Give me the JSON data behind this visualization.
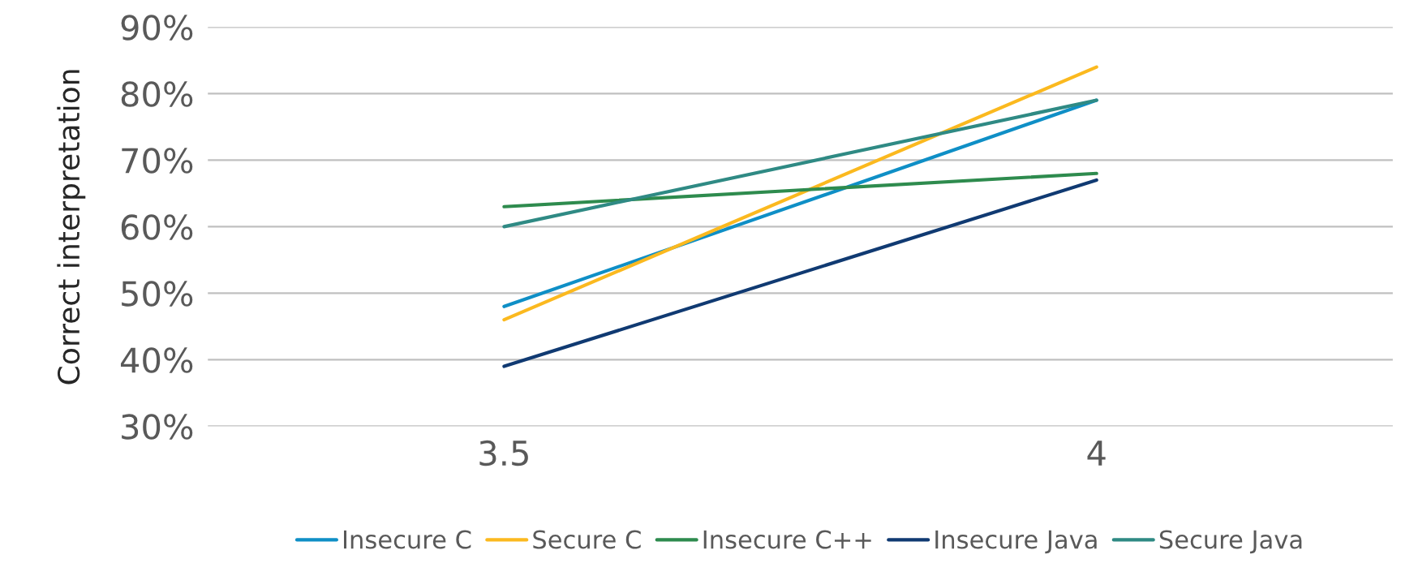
{
  "chart_data": {
    "type": "line",
    "ylabel": "Correct interpretation",
    "categories": [
      "3.5",
      "4"
    ],
    "series": [
      {
        "name": "Insecure C",
        "color": "#0f8fc6",
        "values": [
          48,
          79
        ]
      },
      {
        "name": "Secure C",
        "color": "#fbb91f",
        "values": [
          46,
          84
        ]
      },
      {
        "name": "Insecure C++",
        "color": "#2e8b4e",
        "values": [
          63,
          68
        ]
      },
      {
        "name": "Insecure Java",
        "color": "#103a72",
        "values": [
          39,
          67
        ]
      },
      {
        "name": "Secure Java",
        "color": "#2f8a84",
        "values": [
          60,
          79
        ]
      }
    ],
    "ylim": [
      30,
      90
    ],
    "yticks": [
      {
        "value": 30,
        "label": "30%"
      },
      {
        "value": 40,
        "label": "40%"
      },
      {
        "value": 50,
        "label": "50%"
      },
      {
        "value": 60,
        "label": "60%"
      },
      {
        "value": 70,
        "label": "70%"
      },
      {
        "value": 80,
        "label": "80%"
      },
      {
        "value": 90,
        "label": "90%"
      }
    ],
    "grid": "y",
    "legend": "bottom",
    "marker": "none",
    "line_style": "solid"
  }
}
